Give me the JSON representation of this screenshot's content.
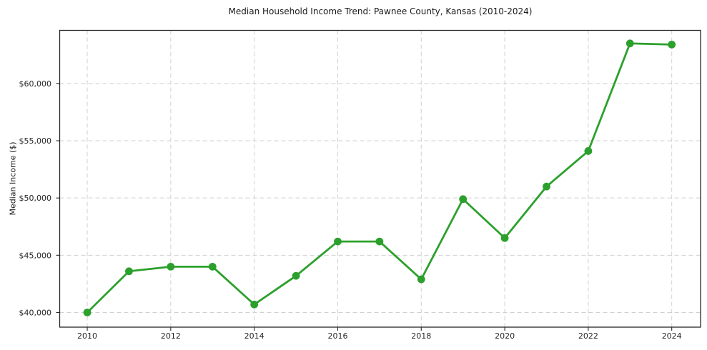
{
  "chart_data": {
    "type": "line",
    "title": "Median Household Income Trend: Pawnee County, Kansas (2010-2024)",
    "xlabel": "",
    "ylabel": "Median Income ($)",
    "x": [
      2010,
      2011,
      2012,
      2013,
      2014,
      2015,
      2016,
      2017,
      2018,
      2019,
      2020,
      2021,
      2022,
      2023,
      2024
    ],
    "values": [
      40000,
      43600,
      44000,
      44000,
      40700,
      43200,
      46200,
      46200,
      42900,
      49900,
      46500,
      51000,
      54100,
      63500,
      63400
    ],
    "xticks": [
      2010,
      2012,
      2014,
      2016,
      2018,
      2020,
      2022,
      2024
    ],
    "xtick_labels": [
      "2010",
      "2012",
      "2014",
      "2016",
      "2018",
      "2020",
      "2022",
      "2024"
    ],
    "yticks": [
      40000,
      45000,
      50000,
      55000,
      60000
    ],
    "ytick_labels": [
      "$40,000",
      "$45,000",
      "$50,000",
      "$55,000",
      "$60,000"
    ],
    "xlim": [
      2009.34,
      2024.69
    ],
    "ylim": [
      38720,
      64640
    ],
    "grid": true,
    "grid_style": "dashed",
    "legend": false,
    "line_color": "#2ca02c",
    "marker": "circle",
    "grid_color": "#d0d0d0",
    "background": "#ffffff"
  }
}
